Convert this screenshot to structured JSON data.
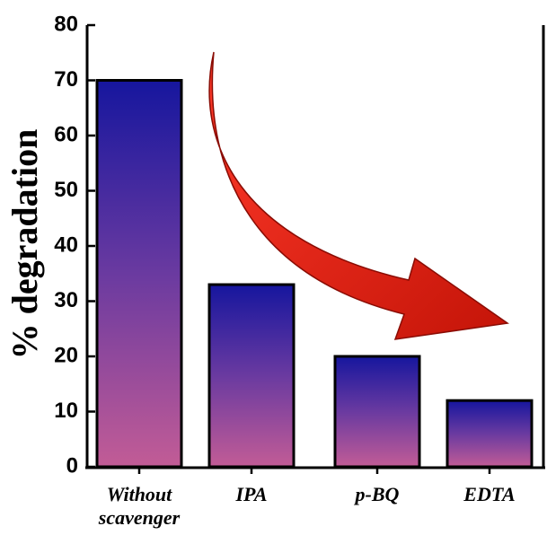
{
  "chart_data": {
    "type": "bar",
    "y_label": "% degradation",
    "categories": [
      "Without scavenger",
      "IPA",
      "p-BQ",
      "EDTA"
    ],
    "values": [
      70,
      33,
      20,
      12
    ],
    "ylim": [
      0,
      80
    ],
    "yticks": [
      0,
      10,
      20,
      30,
      40,
      50,
      60,
      70,
      80
    ]
  }
}
